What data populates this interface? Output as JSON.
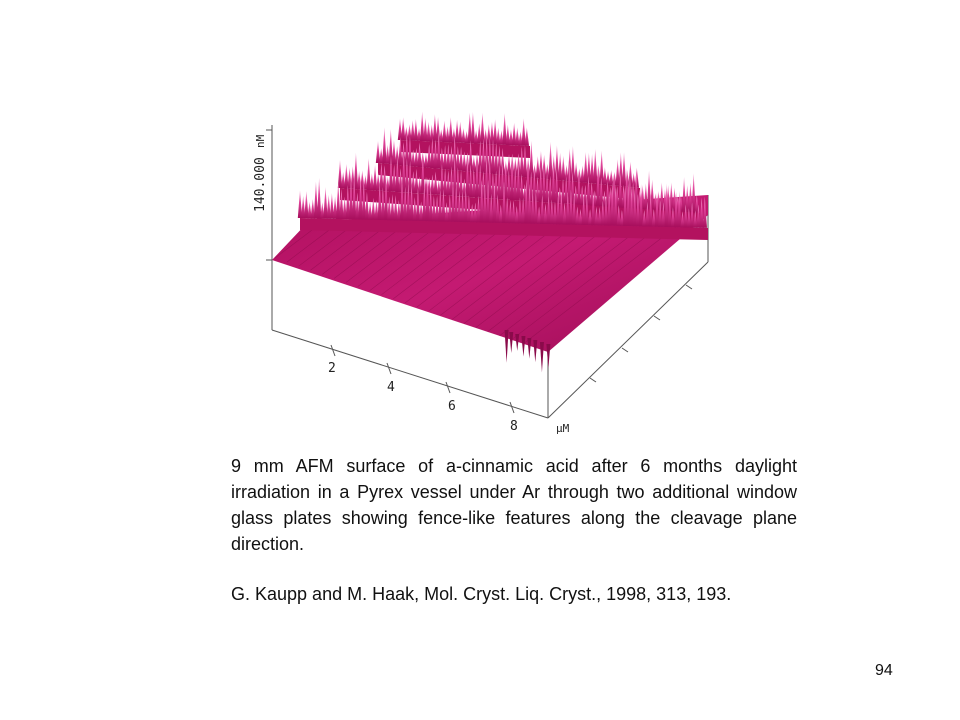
{
  "figure": {
    "z_axis_label": "140.000",
    "z_axis_unit": "nM",
    "x_axis_ticks": [
      "2",
      "4",
      "6",
      "8"
    ],
    "x_axis_unit": "µM",
    "surface_color": "#c0136e",
    "surface_highlight": "#f07ac0"
  },
  "caption": "9 mm AFM surface of a-cinnamic acid after 6 months daylight irradiation in a Pyrex vessel under Ar through two additional window glass plates showing fence-like features along the cleavage plane direction.",
  "reference": "G. Kaupp and M. Haak, Mol. Cryst. Liq. Cryst., 1998, 313, 193.",
  "page_number": "94"
}
